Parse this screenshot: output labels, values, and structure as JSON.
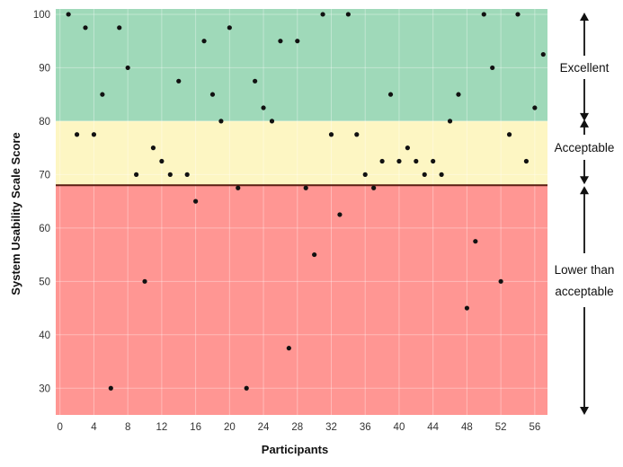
{
  "chart_data": {
    "type": "scatter",
    "xlabel": "Participants",
    "ylabel": "System Usability Scale Score",
    "xlim": [
      -0.5,
      57.5
    ],
    "ylim": [
      25,
      101
    ],
    "x_ticks": [
      0,
      4,
      8,
      12,
      16,
      20,
      24,
      28,
      32,
      36,
      40,
      44,
      48,
      52,
      56
    ],
    "y_ticks": [
      30,
      40,
      50,
      60,
      70,
      80,
      90,
      100
    ],
    "grid": true,
    "threshold": 68,
    "bands": [
      {
        "label": "Excellent",
        "from": 80,
        "to": 101,
        "color": "#9fd9b9"
      },
      {
        "label": "Acceptable",
        "from": 68,
        "to": 80,
        "color": "#fdf6c3"
      },
      {
        "label": "Lower than acceptable",
        "from": 25,
        "to": 68,
        "color": "#ff9693"
      }
    ],
    "annotations": [
      {
        "text": "Excellent",
        "lines": [
          "Excellent"
        ]
      },
      {
        "text": "Acceptable",
        "lines": [
          "Acceptable"
        ]
      },
      {
        "text": "Lower than acceptable",
        "lines": [
          "Lower than",
          "acceptable"
        ]
      }
    ],
    "x": [
      1,
      2,
      3,
      4,
      5,
      6,
      7,
      8,
      9,
      10,
      11,
      12,
      13,
      14,
      15,
      16,
      17,
      18,
      19,
      20,
      21,
      22,
      23,
      24,
      25,
      26,
      27,
      28,
      29,
      30,
      31,
      32,
      33,
      34,
      35,
      36,
      37,
      38,
      39,
      40,
      41,
      42,
      43,
      44,
      45,
      46,
      47,
      48,
      49,
      50,
      51,
      52,
      53,
      54,
      55,
      56,
      57
    ],
    "y": [
      100,
      77.5,
      97.5,
      77.5,
      85,
      30,
      97.5,
      90,
      70,
      50,
      75,
      72.5,
      70,
      87.5,
      70,
      65,
      95,
      85,
      80,
      97.5,
      67.5,
      30,
      87.5,
      82.5,
      80,
      95,
      37.5,
      95,
      67.5,
      55,
      100,
      77.5,
      62.5,
      100,
      77.5,
      70,
      67.5,
      72.5,
      85,
      72.5,
      75,
      72.5,
      70,
      72.5,
      70,
      80,
      85,
      45,
      57.5,
      100,
      90,
      50,
      77.5,
      100,
      72.5,
      82.5,
      92.5
    ]
  }
}
